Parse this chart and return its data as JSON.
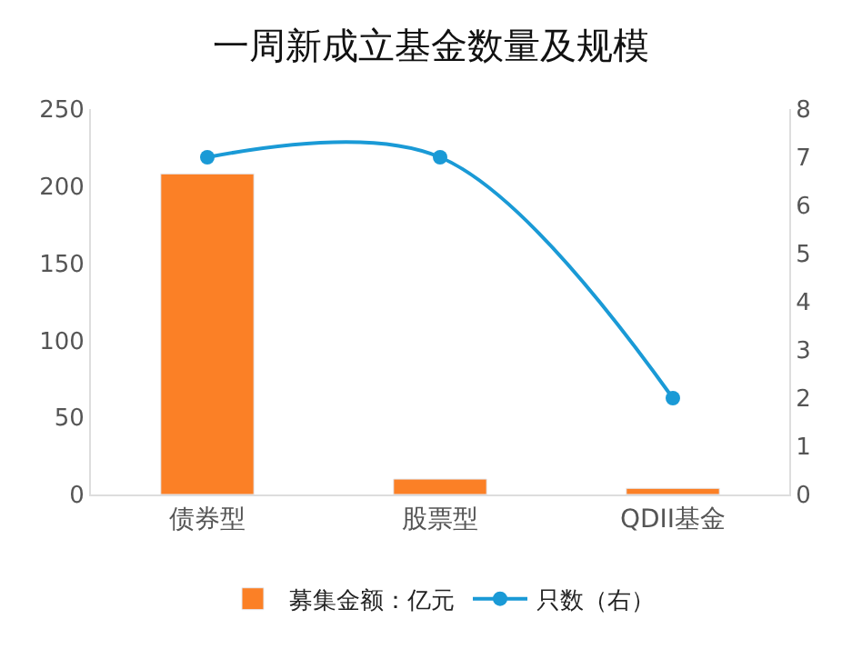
{
  "chart_data": {
    "type": "bar",
    "title": "一周新成立基金数量及规模",
    "categories": [
      "债券型",
      "股票型",
      "QDII基金"
    ],
    "series": [
      {
        "name": "募集金额：亿元",
        "color": "#fb8026",
        "values": [
          208,
          10,
          4
        ]
      },
      {
        "name": "只数（右）",
        "type": "line",
        "axis": "y2",
        "color": "#1a9ad6",
        "values": [
          7,
          7,
          2
        ]
      }
    ],
    "ylim": [
      0,
      250
    ],
    "yticks": [
      0,
      50,
      100,
      150,
      200,
      250
    ],
    "y2lim": [
      0,
      8
    ],
    "y2ticks": [
      0,
      1,
      2,
      3,
      4,
      5,
      6,
      7,
      8
    ],
    "legend": "bottom",
    "marker": "circle"
  }
}
